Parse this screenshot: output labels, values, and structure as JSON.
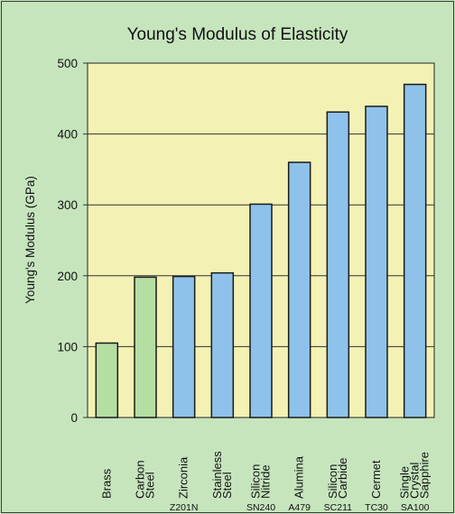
{
  "colors": {
    "background": "#c6e5bd",
    "plot_area": "#f3f1b3",
    "material_bar": "#b5dea3",
    "ceramic_bar": "#8fc2ea",
    "bar_outline": "#1a1a1a"
  },
  "chart_data": {
    "type": "bar",
    "title": "Young's Modulus of Elasticity",
    "xlabel": "",
    "ylabel": "Young's Modulus (GPa)",
    "ylim": [
      0,
      500
    ],
    "yticks": [
      0,
      100,
      200,
      300,
      400,
      500
    ],
    "grid": true,
    "legend": "none",
    "categories": [
      {
        "lines": [
          "Brass"
        ],
        "code": "",
        "group": "metal"
      },
      {
        "lines": [
          "Carbon",
          "Steel"
        ],
        "code": "",
        "group": "metal"
      },
      {
        "lines": [
          "Zirconia"
        ],
        "code": "Z201N",
        "group": "ceramic"
      },
      {
        "lines": [
          "Stainless",
          "Steel"
        ],
        "code": "",
        "group": "ceramic"
      },
      {
        "lines": [
          "Silicon",
          "Nitride"
        ],
        "code": "SN240",
        "group": "ceramic"
      },
      {
        "lines": [
          "Alumina"
        ],
        "code": "A479",
        "group": "ceramic"
      },
      {
        "lines": [
          "Silicon",
          "Carbide"
        ],
        "code": "SC211",
        "group": "ceramic"
      },
      {
        "lines": [
          "Cermet"
        ],
        "code": "TC30",
        "group": "ceramic"
      },
      {
        "lines": [
          "Single",
          "Crystal",
          "Sapphire"
        ],
        "code": "SA100",
        "group": "ceramic"
      }
    ],
    "values": [
      105,
      198,
      199,
      204,
      301,
      360,
      431,
      439,
      470
    ]
  }
}
